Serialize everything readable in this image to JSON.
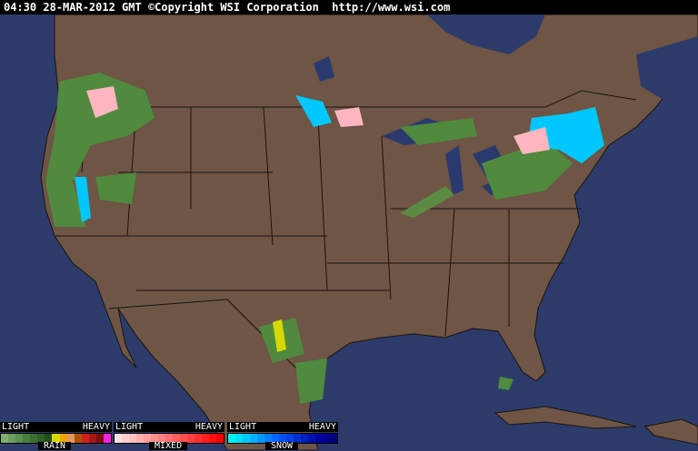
{
  "header": {
    "timestamp": "04:30 28-MAR-2012 GMT",
    "copyright": "©Copyright WSI Corporation",
    "url": "http://www.wsi.com"
  },
  "colors": {
    "ocean": "#2c3b6a",
    "land": "#6e5545",
    "borders": "#1a1410"
  },
  "legend": [
    {
      "name": "RAIN",
      "light": "LIGHT",
      "heavy": "HEAVY",
      "colors": [
        "#7fae6e",
        "#6d9e5e",
        "#5a8e4e",
        "#4a7e3e",
        "#3c6e32",
        "#2f5e28",
        "#234e1e",
        "#d8d800",
        "#f0a000",
        "#e09a60",
        "#b05000",
        "#d02020",
        "#a81818",
        "#801010",
        "#ff20e0"
      ]
    },
    {
      "name": "MIXED",
      "light": "LIGHT",
      "heavy": "HEAVY",
      "colors": [
        "#ffe0e0",
        "#ffd0d0",
        "#ffc0c0",
        "#ffb0b0",
        "#ffa0a0",
        "#ff9090",
        "#ff8080",
        "#ff7070",
        "#ff6060",
        "#ff5050",
        "#ff4040",
        "#ff3030",
        "#ff2020",
        "#ff1010",
        "#ff0000"
      ]
    },
    {
      "name": "SNOW",
      "light": "LIGHT",
      "heavy": "HEAVY",
      "colors": [
        "#00f0f0",
        "#00e0ff",
        "#00c8ff",
        "#00b0ff",
        "#0098ff",
        "#0080ff",
        "#0068ff",
        "#0050f0",
        "#0040e0",
        "#0030d0",
        "#0020c0",
        "#0010b0",
        "#0000a0",
        "#000090",
        "#000080"
      ]
    }
  ]
}
